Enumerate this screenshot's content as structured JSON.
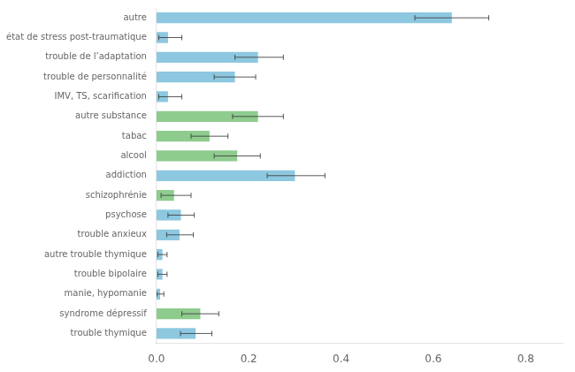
{
  "chart_data": {
    "type": "bar",
    "orientation": "horizontal",
    "categories": [
      "autre",
      "état de stress post-traumatique",
      "trouble de l’adaptation",
      "trouble de personnalité",
      "IMV, TS, scarification",
      "autre substance",
      "tabac",
      "alcool",
      "addiction",
      "schizophrénie",
      "psychose",
      "trouble anxieux",
      "autre trouble thymique",
      "trouble bipolaire",
      "manie, hypomanie",
      "syndrome dépressif",
      "trouble thymique"
    ],
    "values": [
      0.64,
      0.025,
      0.22,
      0.17,
      0.025,
      0.22,
      0.115,
      0.175,
      0.3,
      0.038,
      0.053,
      0.05,
      0.013,
      0.013,
      0.008,
      0.095,
      0.085
    ],
    "ci_lower": [
      0.56,
      0.005,
      0.17,
      0.125,
      0.005,
      0.165,
      0.075,
      0.125,
      0.24,
      0.01,
      0.025,
      0.022,
      0.003,
      0.003,
      0.001,
      0.055,
      0.052
    ],
    "ci_upper": [
      0.72,
      0.055,
      0.275,
      0.215,
      0.055,
      0.275,
      0.155,
      0.225,
      0.365,
      0.075,
      0.082,
      0.08,
      0.023,
      0.023,
      0.016,
      0.135,
      0.12
    ],
    "colors": [
      "#8DC8E0",
      "#8DC8E0",
      "#8DC8E0",
      "#8DC8E0",
      "#8DC8E0",
      "#8ECC8E",
      "#8ECC8E",
      "#8ECC8E",
      "#8DC8E0",
      "#8ECC8E",
      "#8DC8E0",
      "#8DC8E0",
      "#8DC8E0",
      "#8DC8E0",
      "#8DC8E0",
      "#8ECC8E",
      "#8DC8E0"
    ],
    "xlim": [
      0,
      0.88
    ],
    "xticks": [
      {
        "value": 0,
        "label": "0.0"
      },
      0.2,
      0.4,
      0.6,
      0.8
    ],
    "grid": false
  }
}
